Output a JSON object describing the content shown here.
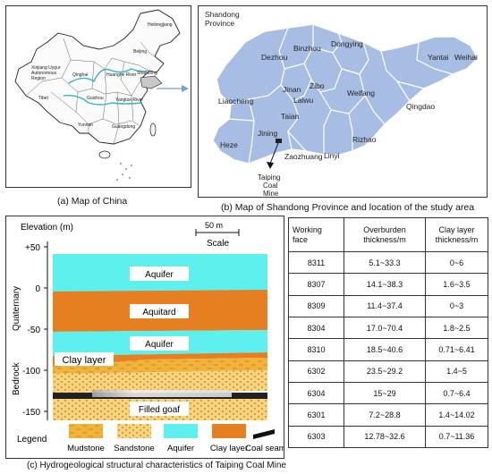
{
  "china_map": {
    "labels": {
      "heilongjiang": "Heilongjiang",
      "xinjiang": "Xinjiang Uygur\nAutonomous\nRegion",
      "beijing": "Beijing",
      "qinghai": "Qinghai",
      "huanghe": "Huanghe River",
      "shandong": "Shandong",
      "tibet": "Tibet",
      "guizhou": "Guizhou",
      "yangtze": "Yangtze River",
      "yunnan": "Yunnan",
      "guangdong": "Guangdong"
    },
    "caption": "(a) Map of China"
  },
  "shandong_map": {
    "title": "Shandong\nProvince",
    "cities": {
      "dezhou": "Dezhou",
      "binzhou": "Binzhou",
      "dongying": "Dongying",
      "yantai": "Yantai",
      "weihai": "Weihai",
      "jinan": "Jinan",
      "zibo": "Zibo",
      "liaocheng": "Liaocheng",
      "laiwu": "Laiwu",
      "weifang": "Weifang",
      "qingdao": "Qingdao",
      "taian": "Taian",
      "heze": "Heze",
      "jining": "Jining",
      "rizhao": "Rizhao",
      "zaozhuang": "Zaozhuang",
      "linyi": "Linyi"
    },
    "mine_label": "Taiping\nCoal\nMine",
    "caption": "(b) Map of Shandong Province and location of the study area"
  },
  "section": {
    "elevation_label": "Elevation (m)",
    "scale_value": "50 m",
    "scale_label": "Scale",
    "ticks": [
      "+50",
      "0",
      "-50",
      "-100",
      "-150"
    ],
    "quaternary": "Quaternary",
    "bedrock": "Bedrock",
    "layers": {
      "aquifer_top": "Aquifer",
      "aquitard": "Aquitard",
      "aquifer_mid": "Aquifer",
      "clay": "Clay layer",
      "goaf": "Filled goaf"
    },
    "legend_title": "Legend",
    "legend": [
      "Mudstone",
      "Sandstone",
      "Aquifer",
      "Clay layer",
      "Coal seam"
    ],
    "colors": {
      "aquifer": "#5ef0ee",
      "clay": "#e67e22",
      "mudstone": "#f2b33b",
      "sandstone": "#fad27a"
    }
  },
  "table": {
    "headers": [
      "Working\nface",
      "Overburden\nthickness/m",
      "Clay layer\nthickness/m"
    ],
    "rows": [
      [
        "8311",
        "5.1~33.3",
        "0~6"
      ],
      [
        "8307",
        "14.1~38.3",
        "1.6~3.5"
      ],
      [
        "8309",
        "11.4~37.4",
        "0~3"
      ],
      [
        "8304",
        "17.0~70.4",
        "1.8~2.5"
      ],
      [
        "8310",
        "18.5~40.6",
        "0.71~6.41"
      ],
      [
        "6302",
        "23.5~29.2",
        "1.4~5"
      ],
      [
        "6304",
        "15~29",
        "0.7~6.4"
      ],
      [
        "6301",
        "7.2~28.8",
        "1.4~14.02"
      ],
      [
        "6303",
        "12.78~32.6",
        "0.7~11.36"
      ]
    ]
  },
  "caption_c": "(c) Hydrogeological structural characteristics of Taiping Coal Mine"
}
